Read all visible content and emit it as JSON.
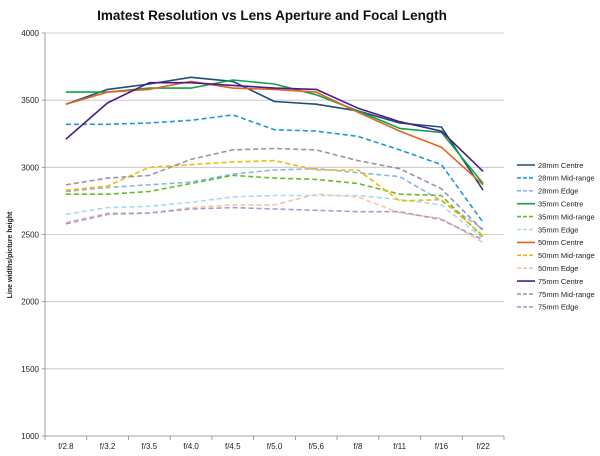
{
  "chart_data": {
    "type": "line",
    "title": "Imatest Resolution vs Lens Aperture and Focal Length",
    "xlabel": "",
    "ylabel": "Line widths/picture height",
    "ylim": [
      1000,
      4000
    ],
    "yticks": [
      1000,
      1500,
      2000,
      2500,
      3000,
      3500,
      4000
    ],
    "grid": "horizontal",
    "legend_position": "right",
    "categories": [
      "f/2.8",
      "f/3.2",
      "f/3.5",
      "f/4.0",
      "f/4.5",
      "f/5.0",
      "f/5.6",
      "f/8",
      "f/11",
      "f/16",
      "f/22"
    ],
    "series": [
      {
        "name": "28mm Centre",
        "color": "#1f4e79",
        "dashed": false,
        "values": [
          3470,
          3580,
          3620,
          3670,
          3640,
          3490,
          3470,
          3420,
          3330,
          3300,
          2830
        ]
      },
      {
        "name": "28mm Mid-range",
        "color": "#1a9ad6",
        "dashed": true,
        "values": [
          3320,
          3320,
          3330,
          3350,
          3390,
          3280,
          3270,
          3230,
          3130,
          3020,
          2590
        ]
      },
      {
        "name": "28mm Edge",
        "color": "#8eb4e3",
        "dashed": true,
        "values": [
          2820,
          2850,
          2870,
          2890,
          2950,
          2980,
          2990,
          2960,
          2930,
          2750,
          2540
        ]
      },
      {
        "name": "35mm Centre",
        "color": "#12a34a",
        "dashed": false,
        "values": [
          3560,
          3560,
          3590,
          3590,
          3650,
          3620,
          3540,
          3420,
          3290,
          3260,
          2880
        ]
      },
      {
        "name": "35mm Mid-range",
        "color": "#66bb2a",
        "dashed": true,
        "values": [
          2800,
          2800,
          2820,
          2880,
          2940,
          2920,
          2910,
          2880,
          2800,
          2790,
          2480
        ]
      },
      {
        "name": "35mm Edge",
        "color": "#a8dcea",
        "dashed": true,
        "values": [
          2650,
          2700,
          2710,
          2740,
          2780,
          2790,
          2790,
          2790,
          2760,
          2720,
          2470
        ]
      },
      {
        "name": "50mm Centre",
        "color": "#e2631e",
        "dashed": false,
        "values": [
          3470,
          3560,
          3580,
          3640,
          3590,
          3580,
          3560,
          3410,
          3270,
          3150,
          2870
        ]
      },
      {
        "name": "50mm Mid-range",
        "color": "#f5b800",
        "dashed": true,
        "values": [
          2830,
          2860,
          3000,
          3020,
          3040,
          3050,
          2980,
          2980,
          2750,
          2760,
          2490
        ]
      },
      {
        "name": "50mm Edge",
        "color": "#f4c6a6",
        "dashed": true,
        "values": [
          2590,
          2660,
          2660,
          2700,
          2720,
          2720,
          2800,
          2780,
          2660,
          2620,
          2440
        ]
      },
      {
        "name": "75mm Centre",
        "color": "#4b1b8a",
        "dashed": false,
        "values": [
          3210,
          3480,
          3630,
          3630,
          3610,
          3590,
          3580,
          3440,
          3340,
          3270,
          2970
        ]
      },
      {
        "name": "75mm Mid-range",
        "color": "#9a92ac",
        "dashed": true,
        "values": [
          2870,
          2920,
          2940,
          3060,
          3130,
          3140,
          3130,
          3050,
          2990,
          2840,
          2530
        ]
      },
      {
        "name": "75mm Edge",
        "color": "#a59ad2",
        "dashed": true,
        "values": [
          2580,
          2650,
          2660,
          2690,
          2700,
          2690,
          2680,
          2670,
          2670,
          2610,
          2460
        ]
      }
    ]
  }
}
